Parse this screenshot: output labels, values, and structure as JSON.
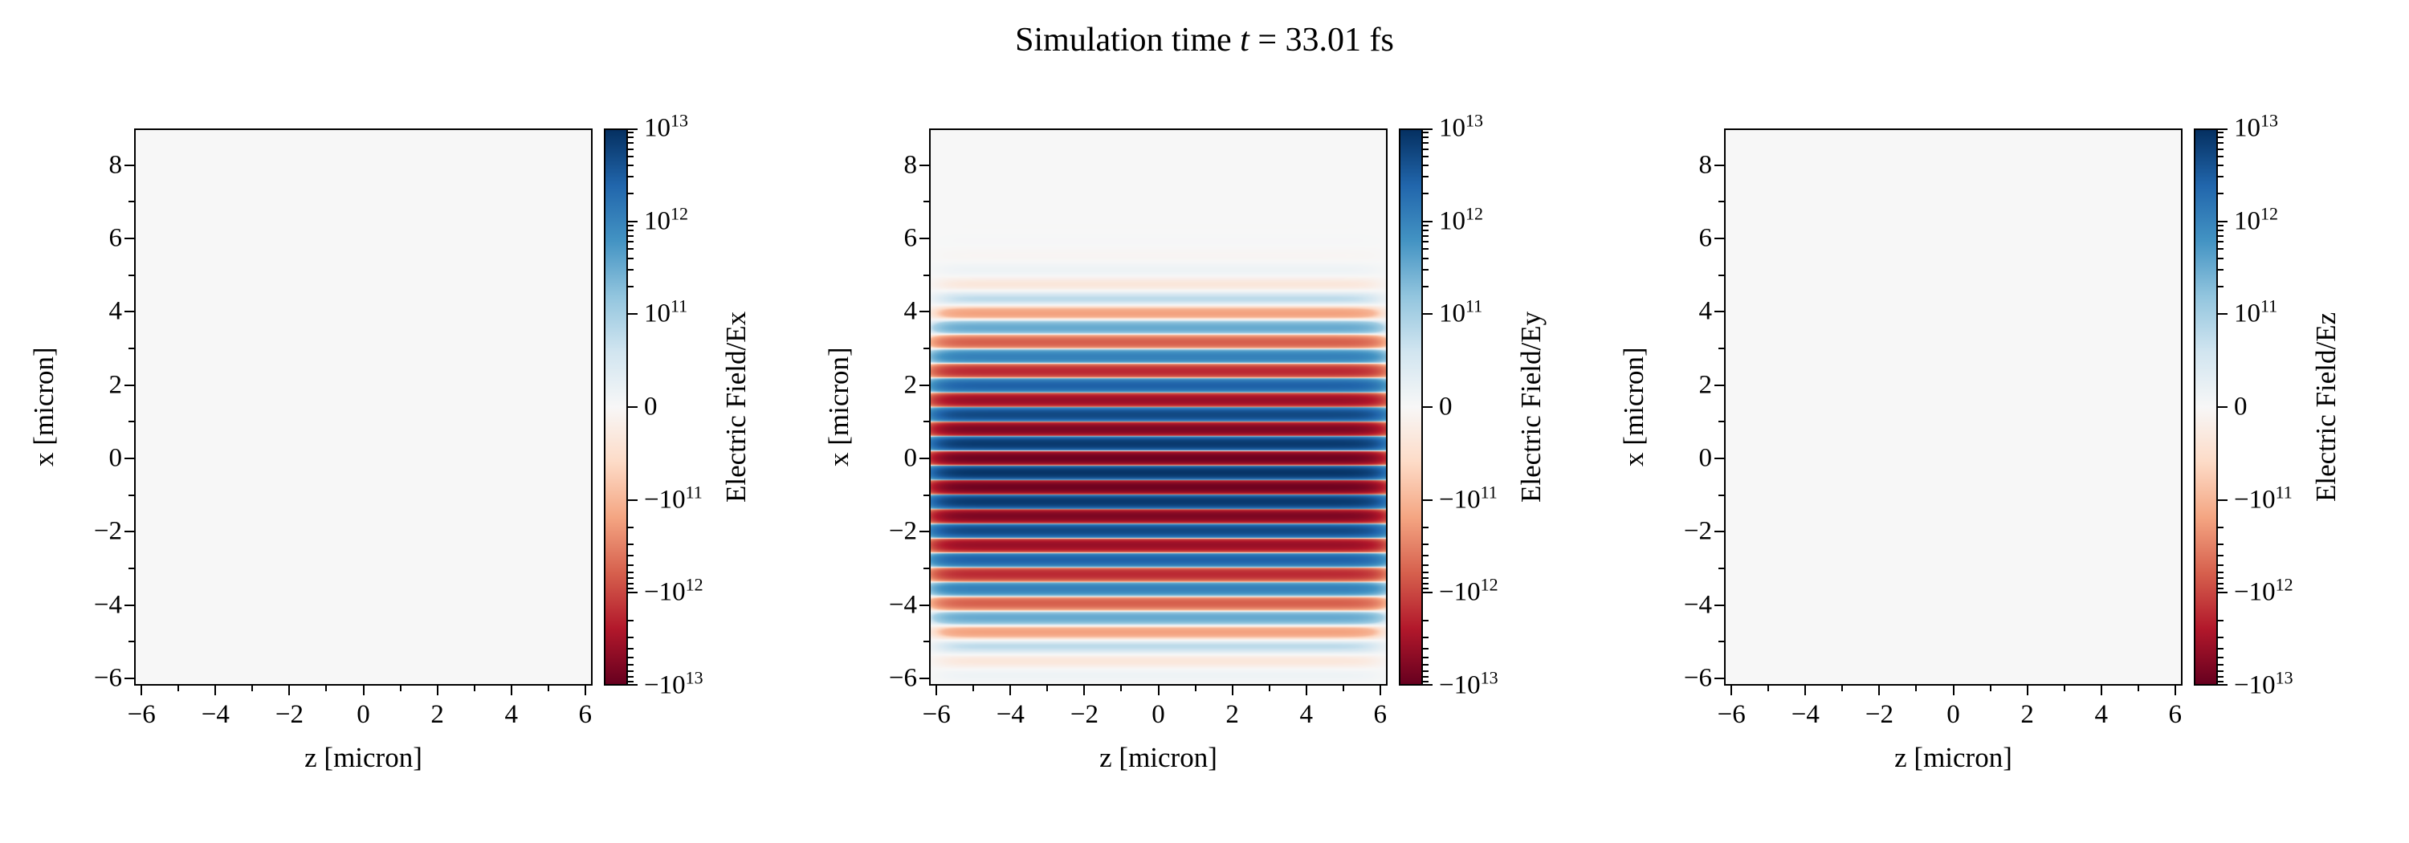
{
  "title": {
    "prefix": "Simulation time ",
    "variable": "t",
    "suffix": " = 33.01 fs",
    "full": "Simulation time t = 33.01 fs"
  },
  "chart_data": {
    "type": "heatmap",
    "figure_title": "Simulation time t = 33.01 fs",
    "simulation_time_fs": 33.01,
    "colormap": {
      "name": "RdBu",
      "stops": [
        "#67001f",
        "#b2182b",
        "#d6604d",
        "#f4a582",
        "#fddbc7",
        "#f7f7f7",
        "#d1e5f0",
        "#92c5de",
        "#4393c3",
        "#2166ac",
        "#053061"
      ]
    },
    "axes": {
      "xlim": [
        -6.2,
        6.2
      ],
      "ylim": [
        -6.2,
        9.0
      ],
      "xticks": [
        -6,
        -4,
        -2,
        0,
        2,
        4,
        6
      ],
      "yticks": [
        8,
        6,
        4,
        2,
        0,
        -2,
        -4,
        -6
      ],
      "xminor": [
        -5,
        -3,
        -1,
        1,
        3,
        5
      ],
      "yminor": [
        -5,
        -3,
        -1,
        1,
        3,
        5,
        7
      ]
    },
    "colorbar": {
      "scale": "symlog",
      "vmin": -10000000000000.0,
      "vmax": 10000000000000.0,
      "linthresh": 100000000000.0,
      "ticks": [
        {
          "value": 10000000000000.0,
          "label": "10^13"
        },
        {
          "value": 1000000000000.0,
          "label": "10^12"
        },
        {
          "value": 100000000000.0,
          "label": "10^11"
        },
        {
          "value": 0,
          "label": "0"
        },
        {
          "value": -100000000000.0,
          "label": "−10^11"
        },
        {
          "value": -1000000000000.0,
          "label": "−10^12"
        },
        {
          "value": -10000000000000.0,
          "label": "−10^13"
        }
      ]
    },
    "panels": [
      {
        "field": "Ex",
        "xlabel": "z [micron]",
        "ylabel": "x [micron]",
        "cbar_label": "Electric Field/Ex",
        "pattern": {
          "type": "uniform-zero",
          "amplitude": 0
        }
      },
      {
        "field": "Ey",
        "xlabel": "z [micron]",
        "ylabel": "x [micron]",
        "cbar_label": "Electric Field/Ey",
        "pattern": {
          "type": "horizontal-stripes",
          "amplitude": 9000000000000.0,
          "wavelength_um": 0.8,
          "center_x_um": -0.4,
          "sigma_x_um": 2.2,
          "z_flat_um": 6.05
        }
      },
      {
        "field": "Ez",
        "xlabel": "z [micron]",
        "ylabel": "x [micron]",
        "cbar_label": "Electric Field/Ez",
        "pattern": {
          "type": "uniform-zero",
          "amplitude": 0
        }
      }
    ]
  }
}
